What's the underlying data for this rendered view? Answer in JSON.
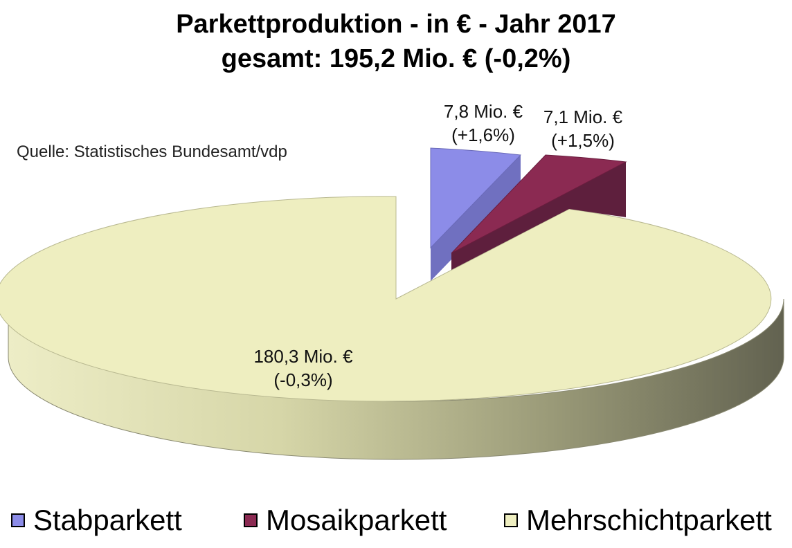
{
  "chart_data": {
    "type": "pie",
    "title": "Parkettproduktion - in € - Jahr 2017",
    "subtitle": "gesamt: 195,2 Mio. € (-0,2%)",
    "source": "Quelle: Statistisches Bundesamt/vdp",
    "unit": "Mio. €",
    "slices": [
      {
        "name": "Stabparkett",
        "value": 7.8,
        "label_value": "7,8 Mio. €",
        "label_change": "(+1,6%)",
        "color": "#8c8ce8"
      },
      {
        "name": "Mosaikparkett",
        "value": 7.1,
        "label_value": "7,1 Mio. €",
        "label_change": "(+1,5%)",
        "color": "#8b2a52"
      },
      {
        "name": "Mehrschichtparkett",
        "value": 180.3,
        "label_value": "180,3 Mio. €",
        "label_change": "(-0,3%)",
        "color": "#eeeec0"
      }
    ],
    "legend_position": "bottom"
  }
}
